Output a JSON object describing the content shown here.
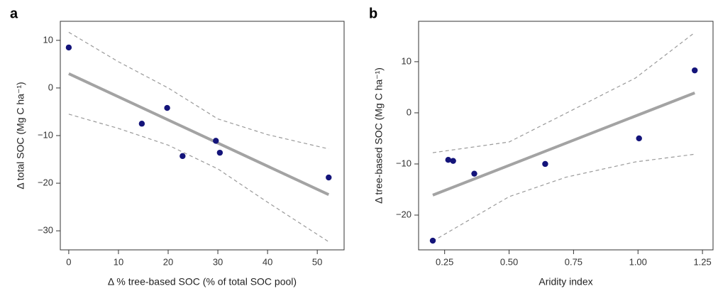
{
  "chart_data": [
    {
      "type": "scatter",
      "panel": "a",
      "x_label": "Δ % tree-based SOC (% of total SOC pool)",
      "y_label": "Δ total SOC (Mg C ha⁻¹)",
      "xlim": [
        -1.7,
        55.4
      ],
      "ylim": [
        -34,
        14
      ],
      "xticks": [
        0,
        10,
        20,
        30,
        40,
        50
      ],
      "yticks": [
        {
          "value": -30,
          "label": "−30"
        },
        {
          "value": -20,
          "label": "−20"
        },
        {
          "value": -10,
          "label": "−10"
        },
        0,
        10
      ],
      "points": {
        "color": "#14147a",
        "x": [
          0,
          14.7,
          19.8,
          22.9,
          29.6,
          30.4,
          52.3
        ],
        "y": [
          8.5,
          -7.5,
          -4.2,
          -14.3,
          -11.1,
          -13.6,
          -18.8
        ]
      },
      "fit": {
        "color": "#a3a3a3",
        "x": [
          0,
          52.3
        ],
        "y": [
          3.0,
          -22.4
        ]
      },
      "ci_upper": {
        "color": "#9a9a9a",
        "x": [
          0,
          10,
          20,
          30,
          40,
          52.3
        ],
        "y": [
          11.7,
          5.5,
          0,
          -6.5,
          -9.8,
          -12.8
        ]
      },
      "ci_lower": {
        "color": "#9a9a9a",
        "x": [
          0,
          10,
          20,
          30,
          40,
          52.3
        ],
        "y": [
          -5.5,
          -8.5,
          -12,
          -17,
          -24,
          -32.3
        ]
      }
    },
    {
      "type": "scatter",
      "panel": "b",
      "x_label": "Aridity index",
      "y_label": "Δ tree-based SOC (Mg C ha⁻¹)",
      "xlim": [
        0.149,
        1.291
      ],
      "ylim": [
        -26.8,
        17.9
      ],
      "xticks": [
        0.25,
        {
          "value": 0.5,
          "label": "0.50"
        },
        0.75,
        {
          "value": 1,
          "label": "1.00"
        },
        1.25
      ],
      "yticks": [
        {
          "value": -20,
          "label": "−20"
        },
        {
          "value": -10,
          "label": "−10"
        },
        0,
        10
      ],
      "points": {
        "color": "#14147a",
        "x": [
          0.204,
          0.264,
          0.283,
          0.365,
          0.64,
          1.004,
          1.22
        ],
        "y": [
          -25.0,
          -9.2,
          -9.4,
          -11.9,
          -10.0,
          -5.0,
          8.3
        ]
      },
      "fit": {
        "color": "#a3a3a3",
        "x": [
          0.204,
          1.22
        ],
        "y": [
          -16.1,
          3.9
        ]
      },
      "ci_upper": {
        "color": "#9a9a9a",
        "x": [
          0.204,
          0.5,
          0.72,
          0.99,
          1.22
        ],
        "y": [
          -7.8,
          -5.7,
          -0.1,
          6.8,
          15.7
        ]
      },
      "ci_lower": {
        "color": "#9a9a9a",
        "x": [
          0.204,
          0.5,
          0.72,
          0.99,
          1.22
        ],
        "y": [
          -25.1,
          -16.4,
          -12.6,
          -9.6,
          -8.1
        ]
      }
    }
  ]
}
